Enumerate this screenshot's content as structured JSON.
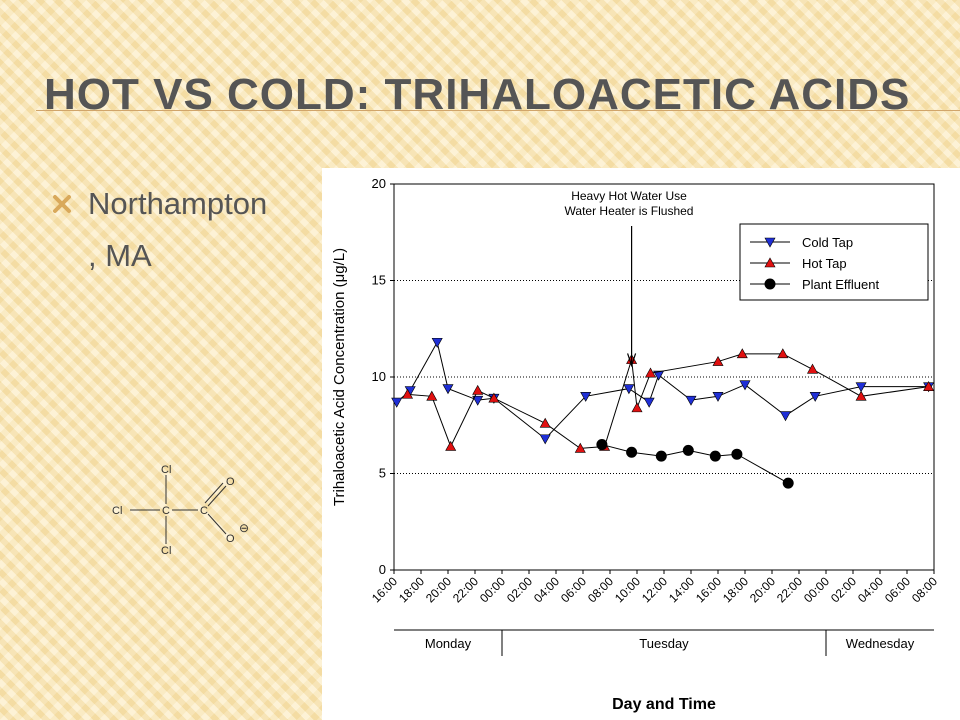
{
  "slide": {
    "title": "HOT VS COLD: TRIHALOACETIC ACIDS",
    "bullet_line1": "Northampton",
    "bullet_line2": ", MA",
    "bullet_icon": "x-mark-icon"
  },
  "molecule": {
    "name": "trichloroacetate",
    "atoms": [
      "Cl",
      "Cl",
      "Cl",
      "C",
      "C",
      "O",
      "O"
    ],
    "charge": "⊖"
  },
  "chart_data": {
    "type": "line",
    "title": "",
    "xlabel": "Day and Time",
    "ylabel": "Trihaloacetic Acid Concentration (μg/L)",
    "ylim": [
      0,
      20
    ],
    "yticks": [
      0,
      5,
      10,
      15,
      20
    ],
    "xlim": [
      0,
      40
    ],
    "xtick_labels": [
      "16:00",
      "18:00",
      "20:00",
      "22:00",
      "00:00",
      "02:00",
      "04:00",
      "06:00",
      "08:00",
      "10:00",
      "12:00",
      "14:00",
      "16:00",
      "18:00",
      "20:00",
      "22:00",
      "00:00",
      "02:00",
      "04:00",
      "06:00",
      "08:00"
    ],
    "day_labels": [
      {
        "label": "Monday",
        "start": 0,
        "end": 8
      },
      {
        "label": "Tuesday",
        "start": 8,
        "end": 32
      },
      {
        "label": "Wednesday",
        "start": 32,
        "end": 40
      }
    ],
    "grid": "horizontal dotted",
    "legend_position": "top-right",
    "annotation": {
      "line1": "Heavy Hot Water Use",
      "line2": "Water Heater is Flushed",
      "x": 17.6,
      "y": 10.6
    },
    "series": [
      {
        "name": "Cold Tap",
        "marker": "triangle-down",
        "color": "#1f2fd6",
        "x": [
          0.2,
          1.2,
          3.2,
          4.0,
          6.2,
          7.4,
          11.2,
          14.2,
          17.4,
          18.9,
          19.6,
          22.0,
          24.0,
          26.0,
          29.0,
          31.2,
          34.6,
          39.6
        ],
        "y": [
          8.7,
          9.3,
          11.8,
          9.4,
          8.8,
          8.9,
          6.8,
          9.0,
          9.4,
          8.7,
          10.1,
          8.8,
          9.0,
          9.6,
          8.0,
          9.0,
          9.5,
          9.5
        ]
      },
      {
        "name": "Hot Tap",
        "marker": "triangle-up",
        "color": "#e01010",
        "x": [
          1.0,
          2.8,
          4.2,
          6.2,
          7.4,
          11.2,
          13.8,
          15.6,
          17.6,
          18.0,
          19.0,
          24.0,
          25.8,
          28.8,
          31.0,
          34.6,
          39.6
        ],
        "y": [
          9.1,
          9.0,
          6.4,
          9.3,
          8.9,
          7.6,
          6.3,
          6.4,
          10.9,
          8.4,
          10.2,
          10.8,
          11.2,
          11.2,
          10.4,
          9.0,
          9.5
        ]
      },
      {
        "name": "Plant Effluent",
        "marker": "circle",
        "color": "#000000",
        "x": [
          15.4,
          17.6,
          19.8,
          21.8,
          23.8,
          25.4,
          29.2
        ],
        "y": [
          6.5,
          6.1,
          5.9,
          6.2,
          5.9,
          6.0,
          4.5
        ]
      }
    ]
  }
}
